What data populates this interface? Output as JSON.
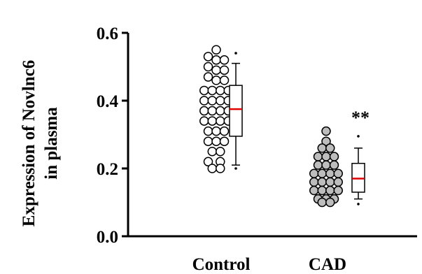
{
  "chart_data": {
    "type": "scatter",
    "title": "",
    "ylabel_line1": "Expression of Novlnc6",
    "ylabel_line2": "in plasma",
    "ylim": [
      0,
      0.6
    ],
    "y_ticks": [
      "0.0",
      "0.2",
      "0.4",
      "0.6"
    ],
    "categories": [
      "Control",
      "CAD"
    ],
    "groups": [
      {
        "name": "Control",
        "fill": "#ffffff",
        "points": [
          {
            "offset": 0,
            "y": 0.55
          },
          {
            "offset": -1,
            "y": 0.53
          },
          {
            "offset": 0,
            "y": 0.52
          },
          {
            "offset": 1,
            "y": 0.52
          },
          {
            "offset": -1,
            "y": 0.5
          },
          {
            "offset": 0,
            "y": 0.49
          },
          {
            "offset": 1,
            "y": 0.49
          },
          {
            "offset": -1,
            "y": 0.47
          },
          {
            "offset": 0,
            "y": 0.46
          },
          {
            "offset": 1,
            "y": 0.46
          },
          {
            "offset": -1.5,
            "y": 0.43
          },
          {
            "offset": -0.5,
            "y": 0.43
          },
          {
            "offset": 0.5,
            "y": 0.43
          },
          {
            "offset": 1.5,
            "y": 0.43
          },
          {
            "offset": -1.5,
            "y": 0.4
          },
          {
            "offset": -0.5,
            "y": 0.4
          },
          {
            "offset": 0.5,
            "y": 0.4
          },
          {
            "offset": 1.5,
            "y": 0.4
          },
          {
            "offset": -1.5,
            "y": 0.37
          },
          {
            "offset": -0.5,
            "y": 0.37
          },
          {
            "offset": 0.5,
            "y": 0.37
          },
          {
            "offset": 1.5,
            "y": 0.37
          },
          {
            "offset": -1.5,
            "y": 0.34
          },
          {
            "offset": -0.5,
            "y": 0.34
          },
          {
            "offset": 0.5,
            "y": 0.34
          },
          {
            "offset": 1.5,
            "y": 0.34
          },
          {
            "offset": -1,
            "y": 0.31
          },
          {
            "offset": 0,
            "y": 0.31
          },
          {
            "offset": 1,
            "y": 0.31
          },
          {
            "offset": -1,
            "y": 0.28
          },
          {
            "offset": 0,
            "y": 0.28
          },
          {
            "offset": 1,
            "y": 0.28
          },
          {
            "offset": -0.5,
            "y": 0.25
          },
          {
            "offset": 0.5,
            "y": 0.25
          },
          {
            "offset": -1,
            "y": 0.22
          },
          {
            "offset": 0.5,
            "y": 0.22
          },
          {
            "offset": -0.5,
            "y": 0.2
          },
          {
            "offset": 0.5,
            "y": 0.2
          }
        ],
        "box": {
          "whisker_low": 0.21,
          "q1": 0.295,
          "median": 0.375,
          "q3": 0.445,
          "whisker_high": 0.51,
          "outliers": [
            0.54,
            0.2
          ]
        }
      },
      {
        "name": "CAD",
        "fill": "#bdbdbd",
        "points": [
          {
            "offset": 0,
            "y": 0.31
          },
          {
            "offset": 0,
            "y": 0.28
          },
          {
            "offset": -0.5,
            "y": 0.26
          },
          {
            "offset": 0.5,
            "y": 0.26
          },
          {
            "offset": -1,
            "y": 0.235
          },
          {
            "offset": 0,
            "y": 0.235
          },
          {
            "offset": 1,
            "y": 0.235
          },
          {
            "offset": -1,
            "y": 0.21
          },
          {
            "offset": 0,
            "y": 0.21
          },
          {
            "offset": 1,
            "y": 0.21
          },
          {
            "offset": -1.5,
            "y": 0.185
          },
          {
            "offset": -0.5,
            "y": 0.185
          },
          {
            "offset": 0.5,
            "y": 0.185
          },
          {
            "offset": 1.5,
            "y": 0.185
          },
          {
            "offset": -1.5,
            "y": 0.16
          },
          {
            "offset": -0.5,
            "y": 0.16
          },
          {
            "offset": 0.5,
            "y": 0.16
          },
          {
            "offset": 1.5,
            "y": 0.16
          },
          {
            "offset": -1.5,
            "y": 0.135
          },
          {
            "offset": -0.5,
            "y": 0.135
          },
          {
            "offset": 0.5,
            "y": 0.135
          },
          {
            "offset": 1.5,
            "y": 0.135
          },
          {
            "offset": -1,
            "y": 0.11
          },
          {
            "offset": 0,
            "y": 0.11
          },
          {
            "offset": 1,
            "y": 0.11
          },
          {
            "offset": -0.5,
            "y": 0.1
          },
          {
            "offset": 0.5,
            "y": 0.1
          }
        ],
        "box": {
          "whisker_low": 0.11,
          "q1": 0.13,
          "median": 0.17,
          "q3": 0.215,
          "whisker_high": 0.26,
          "outliers": [
            0.295,
            0.095
          ]
        },
        "annotation": "**"
      }
    ],
    "median_color": "#e00000",
    "grid": false,
    "legend": "none"
  }
}
